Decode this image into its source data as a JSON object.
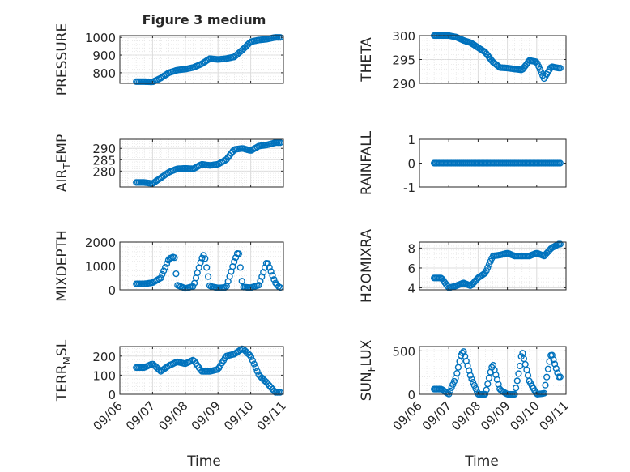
{
  "figure": {
    "title": "Figure 3 medium",
    "marker_color": "#0072BD",
    "x_tick_labels": [
      "09/06",
      "09/07",
      "09/08",
      "09/09",
      "09/10",
      "09/11"
    ],
    "x_label": "Time"
  },
  "chart_data": [
    {
      "type": "scatter",
      "ylabel": "PRESSURE",
      "ylim": [
        740,
        1010
      ],
      "yticks": [
        800,
        900,
        1000
      ],
      "grid": true,
      "x": [
        "09/06 18:00",
        "09/07 00:00",
        "09/07 06:00",
        "09/07 12:00",
        "09/07 18:00",
        "09/08 00:00",
        "09/08 06:00",
        "09/08 12:00",
        "09/08 18:00",
        "09/09 00:00",
        "09/09 06:00",
        "09/09 12:00",
        "09/09 18:00",
        "09/10 00:00",
        "09/10 06:00",
        "09/10 12:00",
        "09/10 18:00"
      ],
      "y": [
        750,
        748,
        770,
        800,
        815,
        820,
        830,
        850,
        880,
        875,
        880,
        890,
        930,
        975,
        985,
        990,
        1000
      ]
    },
    {
      "type": "scatter",
      "ylabel": "THETA",
      "ylim": [
        290,
        300
      ],
      "yticks": [
        290,
        295,
        300
      ],
      "grid": true,
      "x": [
        "09/07 00:00",
        "09/07 06:00",
        "09/07 12:00",
        "09/07 18:00",
        "09/08 00:00",
        "09/08 06:00",
        "09/08 12:00",
        "09/08 18:00",
        "09/09 00:00",
        "09/09 06:00",
        "09/09 12:00",
        "09/09 18:00",
        "09/10 00:00",
        "09/10 06:00",
        "09/10 12:00",
        "09/10 18:00"
      ],
      "y": [
        300,
        299.7,
        299,
        298.5,
        297.5,
        296.5,
        294.5,
        293.3,
        293.2,
        293,
        292.8,
        294.8,
        294.5,
        291,
        293.5,
        293.2
      ]
    },
    {
      "type": "scatter",
      "ylabel": "AIR_TEMP",
      "ylim": [
        273,
        294
      ],
      "yticks": [
        280,
        285,
        290
      ],
      "grid": true,
      "x": [
        "09/06 18:00",
        "09/07 00:00",
        "09/07 06:00",
        "09/07 12:00",
        "09/07 18:00",
        "09/08 00:00",
        "09/08 06:00",
        "09/08 12:00",
        "09/08 18:00",
        "09/09 00:00",
        "09/09 06:00",
        "09/09 12:00",
        "09/09 18:00",
        "09/10 00:00",
        "09/10 06:00",
        "09/10 12:00",
        "09/10 18:00"
      ],
      "y": [
        275,
        274.5,
        277,
        279.5,
        281,
        281.2,
        281,
        283,
        282.5,
        283,
        285,
        289.5,
        290,
        289,
        291,
        291.5,
        292.5
      ]
    },
    {
      "type": "scatter",
      "ylabel": "RAINFALL",
      "ylim": [
        -1,
        1
      ],
      "yticks": [
        -1,
        0,
        1
      ],
      "grid": false,
      "x": [
        "09/06 18:00",
        "09/07 00:00",
        "09/07 12:00",
        "09/08 00:00",
        "09/08 12:00",
        "09/09 00:00",
        "09/09 12:00",
        "09/10 00:00",
        "09/10 12:00",
        "09/10 21:00"
      ],
      "y": [
        0,
        0,
        0,
        0,
        0,
        0,
        0,
        0,
        0,
        0
      ]
    },
    {
      "type": "scatter",
      "ylabel": "MIXDEPTH",
      "ylim": [
        0,
        2000
      ],
      "yticks": [
        0,
        1000,
        2000
      ],
      "grid": true,
      "x": [
        "09/06 18:00",
        "09/07 00:00",
        "09/07 06:00",
        "09/07 12:00",
        "09/07 16:00",
        "09/07 18:00",
        "09/08 00:00",
        "09/08 06:00",
        "09/08 12:00",
        "09/08 14:00",
        "09/08 18:00",
        "09/09 00:00",
        "09/09 06:00",
        "09/09 12:00",
        "09/09 15:00",
        "09/09 18:00",
        "09/10 00:00",
        "09/10 06:00",
        "09/10 12:00",
        "09/10 18:00",
        "09/10 21:00"
      ],
      "y": [
        250,
        300,
        500,
        1300,
        1400,
        200,
        60,
        150,
        1300,
        1500,
        150,
        80,
        100,
        1200,
        1650,
        120,
        90,
        200,
        1200,
        300,
        100
      ]
    },
    {
      "type": "scatter",
      "ylabel": "H2OMIXRA",
      "ylim": [
        3.8,
        8.6
      ],
      "yticks": [
        4,
        6,
        8
      ],
      "grid": true,
      "x": [
        "09/06 18:00",
        "09/07 00:00",
        "09/07 06:00",
        "09/07 12:00",
        "09/07 18:00",
        "09/08 00:00",
        "09/08 06:00",
        "09/08 12:00",
        "09/08 18:00",
        "09/09 00:00",
        "09/09 06:00",
        "09/09 12:00",
        "09/09 18:00",
        "09/10 00:00",
        "09/10 06:00",
        "09/10 12:00",
        "09/10 18:00"
      ],
      "y": [
        5,
        4,
        4.2,
        4.5,
        4.2,
        5,
        5.5,
        7.2,
        7.3,
        7.5,
        7.2,
        7.2,
        7.2,
        7.5,
        7.2,
        8,
        8.4
      ]
    },
    {
      "type": "scatter",
      "ylabel": "TERR_MSL",
      "ylim": [
        0,
        250
      ],
      "yticks": [
        0,
        100,
        200
      ],
      "grid": true,
      "x": [
        "09/06 18:00",
        "09/07 00:00",
        "09/07 06:00",
        "09/07 12:00",
        "09/07 18:00",
        "09/08 00:00",
        "09/08 06:00",
        "09/08 12:00",
        "09/08 18:00",
        "09/09 00:00",
        "09/09 06:00",
        "09/09 12:00",
        "09/09 18:00",
        "09/10 00:00",
        "09/10 06:00",
        "09/10 12:00",
        "09/10 18:00"
      ],
      "y": [
        140,
        160,
        120,
        150,
        170,
        160,
        180,
        120,
        120,
        130,
        200,
        210,
        240,
        200,
        100,
        60,
        10
      ]
    },
    {
      "type": "scatter",
      "ylabel": "SUN_FLUX",
      "ylim": [
        0,
        550
      ],
      "yticks": [
        0,
        500
      ],
      "grid": true,
      "x": [
        "09/06 18:00",
        "09/07 00:00",
        "09/07 06:00",
        "09/07 10:00",
        "09/07 12:00",
        "09/07 18:00",
        "09/08 00:00",
        "09/08 06:00",
        "09/08 10:00",
        "09/08 12:00",
        "09/08 18:00",
        "09/09 00:00",
        "09/09 06:00",
        "09/09 10:00",
        "09/09 12:00",
        "09/09 18:00",
        "09/10 00:00",
        "09/10 06:00",
        "09/10 10:00",
        "09/10 12:00",
        "09/10 18:00"
      ],
      "y": [
        60,
        0,
        200,
        450,
        500,
        200,
        0,
        0,
        250,
        350,
        50,
        0,
        0,
        300,
        500,
        150,
        0,
        10,
        350,
        480,
        200
      ]
    }
  ]
}
